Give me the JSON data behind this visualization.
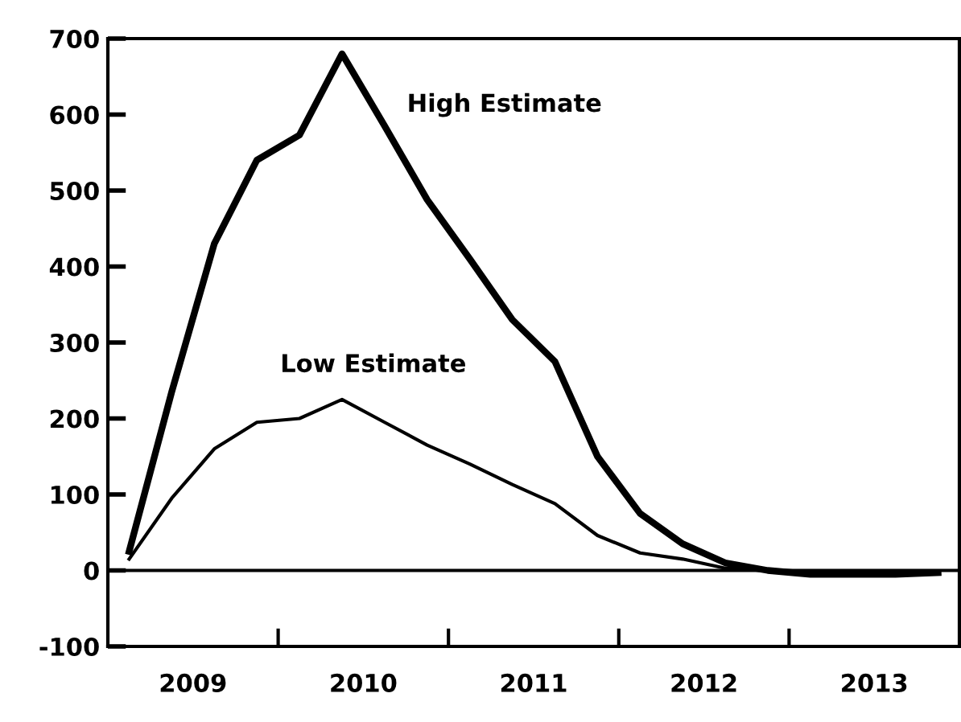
{
  "chart_data": {
    "type": "line",
    "x": [
      2009.125,
      2009.375,
      2009.625,
      2009.875,
      2010.125,
      2010.375,
      2010.625,
      2010.875,
      2011.125,
      2011.375,
      2011.625,
      2011.875,
      2012.125,
      2012.375,
      2012.625,
      2012.875,
      2013.125,
      2013.375,
      2013.625,
      2013.875
    ],
    "series": [
      {
        "name": "High Estimate",
        "color": "#000000",
        "values": [
          25,
          235,
          430,
          540,
          573,
          680,
          585,
          488,
          410,
          330,
          275,
          150,
          75,
          35,
          10,
          0,
          -5,
          -5,
          -5,
          -3
        ]
      },
      {
        "name": "Low Estimate",
        "color": "#000000",
        "values": [
          15,
          95,
          160,
          195,
          200,
          225,
          195,
          165,
          140,
          113,
          88,
          46,
          23,
          15,
          3,
          0,
          -3,
          -3,
          -3,
          -3
        ]
      }
    ],
    "xlim": [
      2009,
      2014
    ],
    "xticks": [
      {
        "value": 2009.5,
        "label": "2009"
      },
      {
        "value": 2010,
        "label": null
      },
      {
        "value": 2010.5,
        "label": "2010"
      },
      {
        "value": 2011,
        "label": null
      },
      {
        "value": 2011.5,
        "label": "2011"
      },
      {
        "value": 2012,
        "label": null
      },
      {
        "value": 2012.5,
        "label": "2012"
      },
      {
        "value": 2013,
        "label": null
      },
      {
        "value": 2013.5,
        "label": "2013"
      }
    ],
    "ylim": [
      -100,
      700
    ],
    "yticks": [
      -100,
      0,
      100,
      200,
      300,
      400,
      500,
      600,
      700
    ],
    "ref_lines": [
      {
        "axis": "y",
        "value": 0,
        "color": "#000000"
      }
    ],
    "grid": false,
    "legend": false,
    "marker": "none",
    "line_style": "solid"
  }
}
